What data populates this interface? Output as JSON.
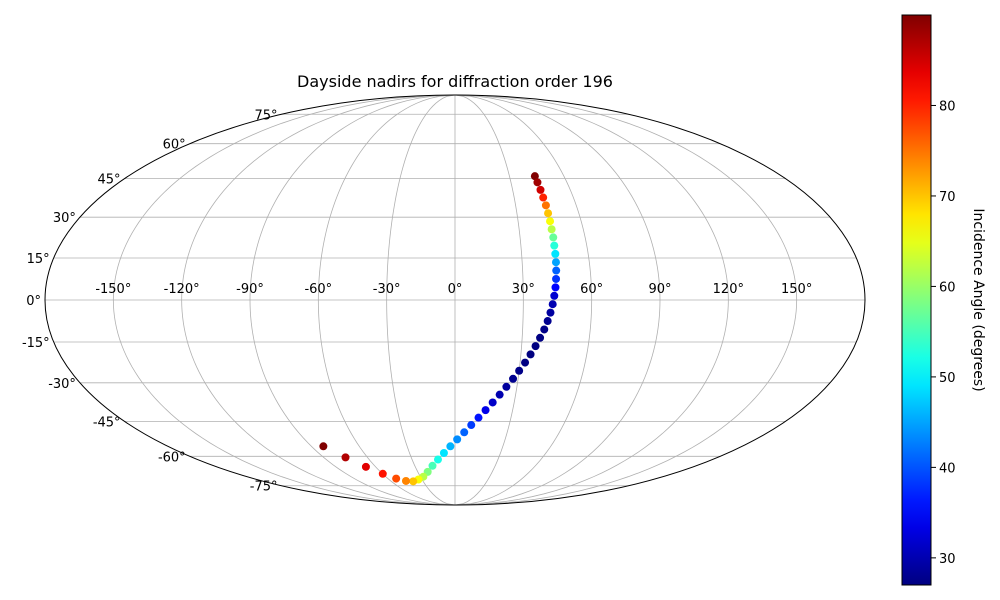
{
  "chart_data": {
    "type": "scatter",
    "projection": "mollweide",
    "title": "Dayside nadirs for diffraction order 196",
    "grid": true,
    "longitude_ticks": [
      -150,
      -120,
      -90,
      -60,
      -30,
      0,
      30,
      60,
      90,
      120,
      150
    ],
    "longitude_tick_labels": [
      "-150°",
      "-120°",
      "-90°",
      "-60°",
      "-30°",
      "0°",
      "30°",
      "60°",
      "90°",
      "120°",
      "150°"
    ],
    "latitude_ticks": [
      -75,
      -60,
      -45,
      -30,
      -15,
      0,
      15,
      30,
      45,
      60,
      75
    ],
    "latitude_tick_labels": [
      "-75°",
      "-60°",
      "-45°",
      "-30°",
      "-15°",
      "0°",
      "15°",
      "30°",
      "45°",
      "60°",
      "75°"
    ],
    "colorbar": {
      "label": "Incidence Angle (degrees)",
      "colormap": "jet",
      "vmin": 27,
      "vmax": 90,
      "ticks": [
        30,
        40,
        50,
        60,
        70,
        80
      ],
      "tick_labels": [
        "30",
        "40",
        "50",
        "60",
        "70",
        "80"
      ]
    },
    "series": [
      {
        "x": [
          44,
          44.2,
          44.5,
          44.7,
          45,
          45.1,
          45.2,
          45.2,
          45.3,
          45.2,
          45.2,
          45.1,
          44.9,
          44.6,
          44.2,
          43.6,
          42.9,
          42,
          40.9,
          39.6,
          38,
          36.3,
          34.4,
          32.3,
          30,
          27.6,
          24.9,
          22.1,
          19.1,
          15.9,
          12.6,
          9,
          5.3,
          1.3,
          -2.9,
          -7.3,
          -11.9,
          -16.8,
          -22,
          -27.4,
          -33.2,
          -39.3,
          -45.8,
          -52.6,
          -59.8,
          -67.3,
          -75,
          -82.5
        ],
        "y": [
          46,
          43.5,
          40.5,
          37.5,
          34.5,
          31.5,
          28.5,
          25.5,
          22.5,
          19.5,
          16.5,
          13.5,
          10.5,
          7.5,
          4.5,
          1.5,
          -1.5,
          -4.5,
          -7.5,
          -10.5,
          -13.5,
          -16.5,
          -19.5,
          -22.5,
          -25.5,
          -28.5,
          -31.5,
          -34.5,
          -37.5,
          -40.5,
          -43.5,
          -46.5,
          -49.5,
          -52.5,
          -55.5,
          -58.5,
          -61.5,
          -64.5,
          -67.5,
          -70,
          -71.5,
          -72.5,
          -72.3,
          -71,
          -68.5,
          -65,
          -60.5,
          -55.5
        ],
        "incidence": [
          90,
          88,
          85,
          80,
          75,
          70,
          66,
          62,
          57,
          53,
          49,
          45,
          41,
          38,
          35,
          32,
          30,
          29,
          28,
          27.5,
          27.2,
          27,
          27,
          27.2,
          27.5,
          28,
          28.8,
          30,
          31.5,
          33.5,
          36,
          38.5,
          41,
          43.5,
          46,
          49,
          52,
          55,
          58.5,
          62,
          66,
          70,
          74,
          77.5,
          81,
          84,
          87,
          90
        ]
      }
    ]
  }
}
